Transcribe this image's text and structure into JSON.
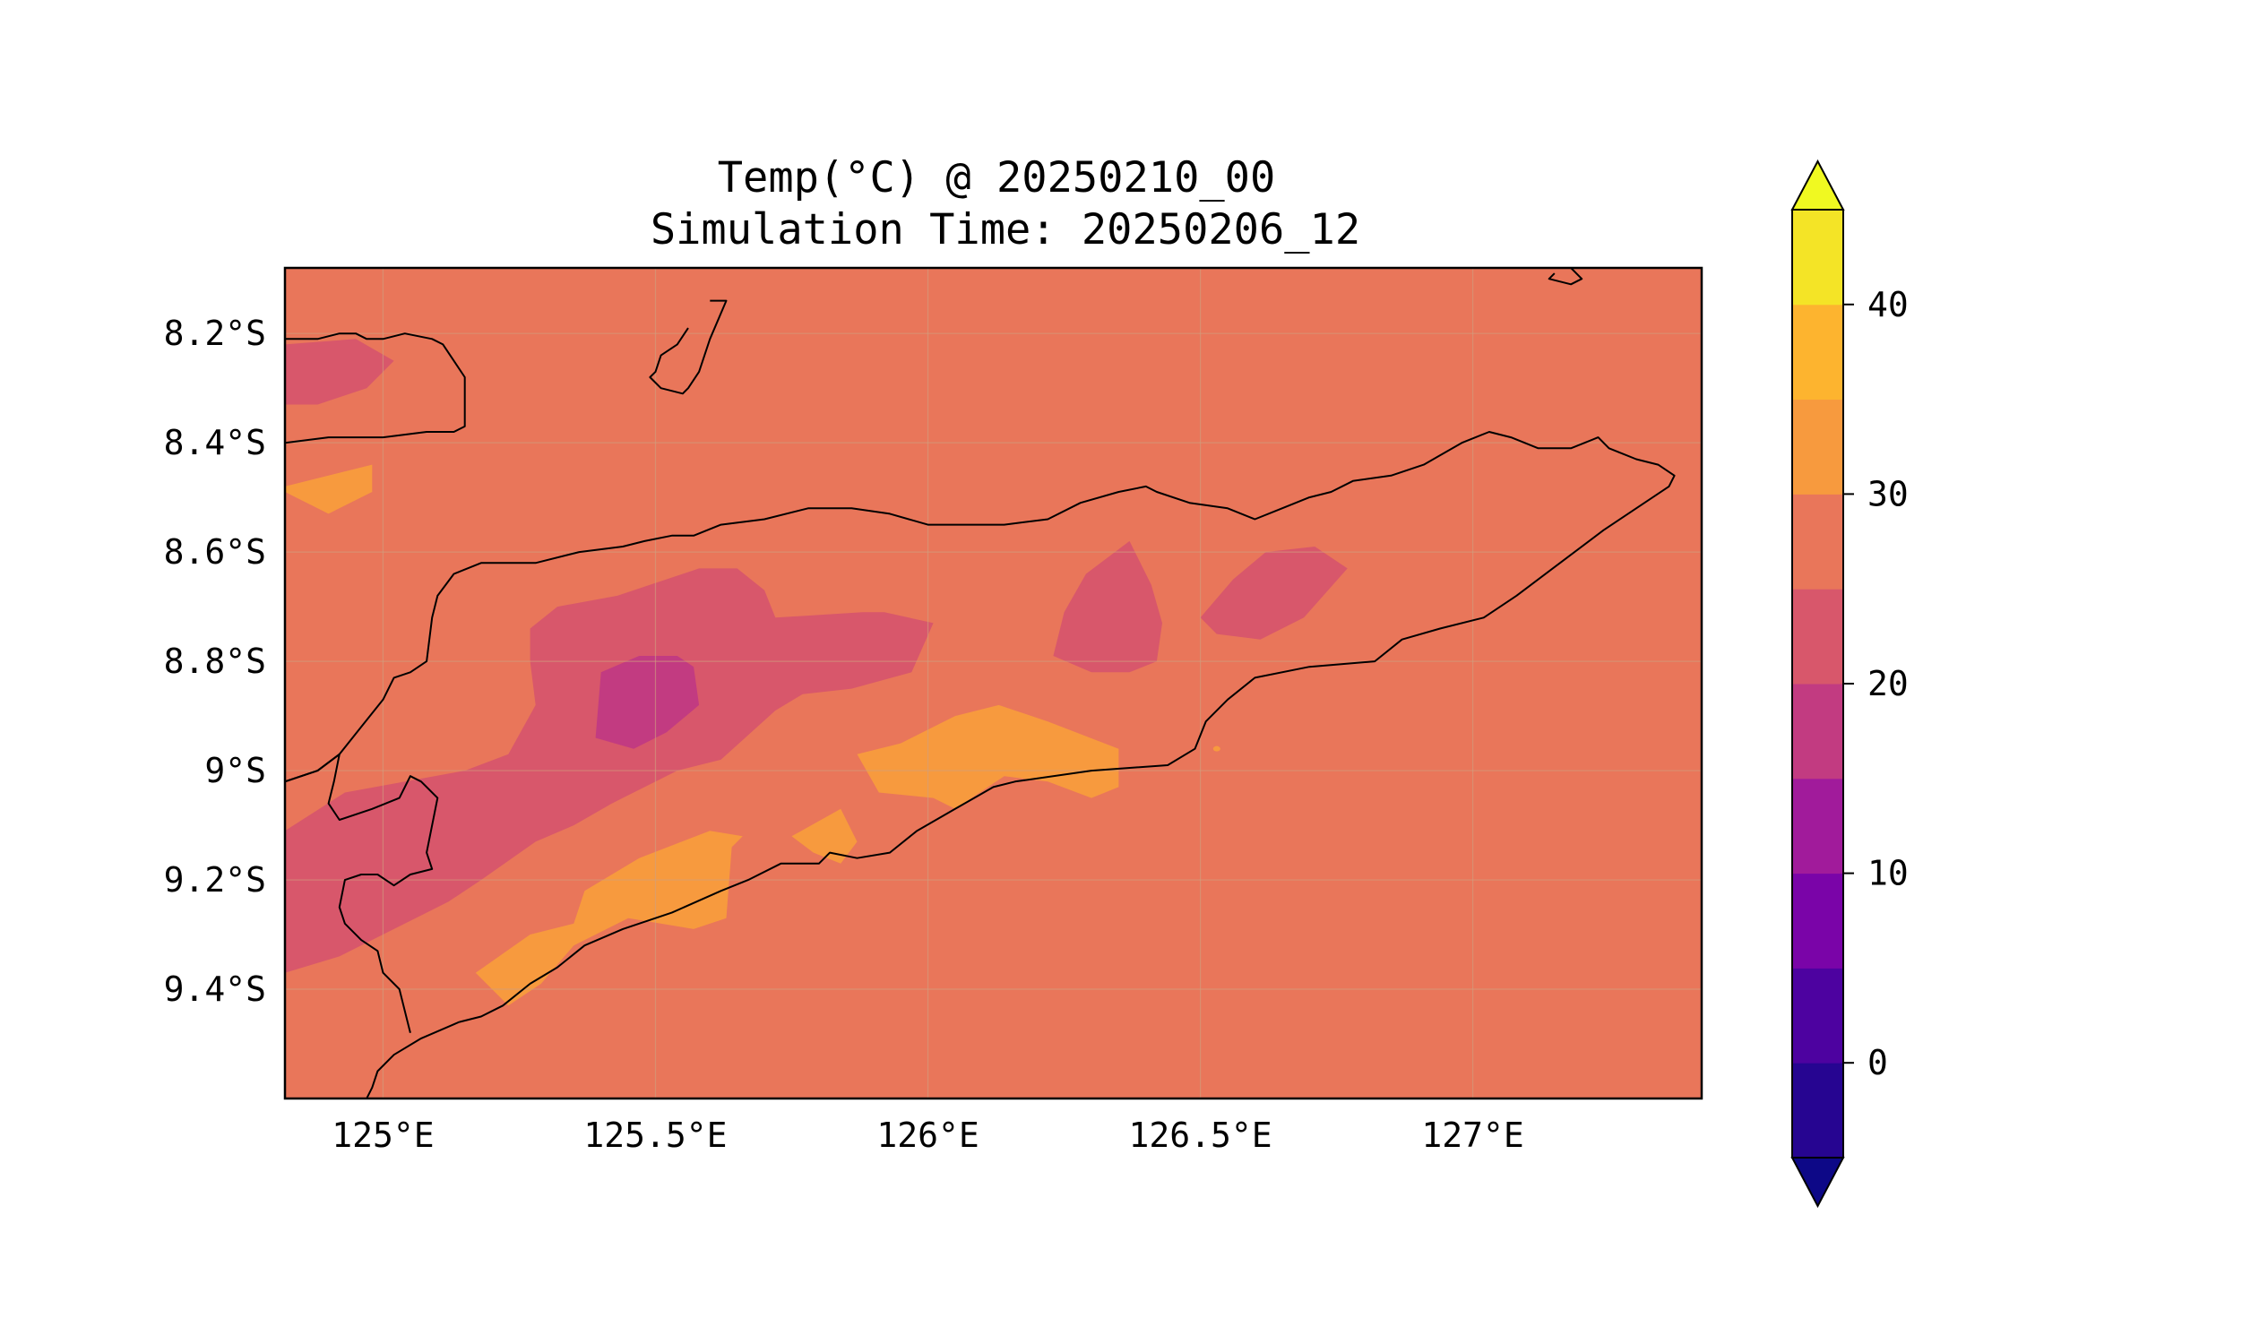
{
  "figure": {
    "title_line1": "Temp(°C) @ 20250210_00",
    "title_line2": "Simulation Time: 20250206_12"
  },
  "map": {
    "variable": "Temp(°C)",
    "background_fill": "#e9765a",
    "xlim": [
      124.82,
      127.42
    ],
    "ylim": [
      -9.6,
      -8.08
    ],
    "x_ticks": [
      {
        "value": 125.0,
        "label": "125°E"
      },
      {
        "value": 125.5,
        "label": "125.5°E"
      },
      {
        "value": 126.0,
        "label": "126°E"
      },
      {
        "value": 126.5,
        "label": "126.5°E"
      },
      {
        "value": 127.0,
        "label": "127°E"
      }
    ],
    "y_ticks": [
      {
        "value": -8.2,
        "label": "8.2°S"
      },
      {
        "value": -8.4,
        "label": "8.4°S"
      },
      {
        "value": -8.6,
        "label": "8.6°S"
      },
      {
        "value": -8.8,
        "label": "8.8°S"
      },
      {
        "value": -9.0,
        "label": "9°S"
      },
      {
        "value": -9.2,
        "label": "9.2°S"
      },
      {
        "value": -9.4,
        "label": "9.4°S"
      }
    ]
  },
  "colorbar": {
    "ticks": [
      {
        "value": 0,
        "label": "0"
      },
      {
        "value": 10,
        "label": "10"
      },
      {
        "value": 20,
        "label": "20"
      },
      {
        "value": 30,
        "label": "30"
      },
      {
        "value": 40,
        "label": "40"
      }
    ],
    "levels": [
      -5,
      0,
      5,
      10,
      15,
      20,
      25,
      30,
      35,
      40,
      45
    ],
    "colors": [
      "#260591",
      "#4d02a0",
      "#7a04a8",
      "#a11b9b",
      "#c23b81",
      "#d8576b",
      "#e9765a",
      "#f79a3e",
      "#fdb42f",
      "#f4e426"
    ],
    "under_color": "#0d0887",
    "over_color": "#f0f921",
    "extend": "both"
  },
  "contour_fills": [
    {
      "name": "contour-20-25-nw",
      "color": "#d8576b",
      "points": [
        [
          124.82,
          -8.22
        ],
        [
          124.95,
          -8.21
        ],
        [
          125.02,
          -8.25
        ],
        [
          124.97,
          -8.3
        ],
        [
          124.88,
          -8.33
        ],
        [
          124.82,
          -8.33
        ]
      ]
    },
    {
      "name": "contour-30-35-west",
      "color": "#f79a3e",
      "points": [
        [
          124.82,
          -8.48
        ],
        [
          124.98,
          -8.44
        ],
        [
          124.98,
          -8.49
        ],
        [
          124.9,
          -8.53
        ],
        [
          124.82,
          -8.49
        ]
      ]
    },
    {
      "name": "contour-20-25-central",
      "color": "#d8576b",
      "points": [
        [
          124.82,
          -9.11
        ],
        [
          124.93,
          -9.04
        ],
        [
          125.15,
          -9.0
        ],
        [
          125.23,
          -8.97
        ],
        [
          125.28,
          -8.88
        ],
        [
          125.27,
          -8.8
        ],
        [
          125.27,
          -8.74
        ],
        [
          125.32,
          -8.7
        ],
        [
          125.43,
          -8.68
        ],
        [
          125.58,
          -8.63
        ],
        [
          125.65,
          -8.63
        ],
        [
          125.7,
          -8.67
        ],
        [
          125.72,
          -8.72
        ],
        [
          125.88,
          -8.71
        ],
        [
          125.92,
          -8.71
        ],
        [
          126.01,
          -8.73
        ],
        [
          125.97,
          -8.82
        ],
        [
          125.86,
          -8.85
        ],
        [
          125.77,
          -8.86
        ],
        [
          125.72,
          -8.89
        ],
        [
          125.62,
          -8.98
        ],
        [
          125.54,
          -9.0
        ],
        [
          125.42,
          -9.06
        ],
        [
          125.35,
          -9.1
        ],
        [
          125.28,
          -9.13
        ],
        [
          125.18,
          -9.2
        ],
        [
          125.12,
          -9.24
        ],
        [
          125.02,
          -9.29
        ],
        [
          124.92,
          -9.34
        ],
        [
          124.82,
          -9.37
        ]
      ]
    },
    {
      "name": "contour-15-20-central",
      "color": "#c23b81",
      "points": [
        [
          125.4,
          -8.82
        ],
        [
          125.47,
          -8.79
        ],
        [
          125.54,
          -8.79
        ],
        [
          125.57,
          -8.81
        ],
        [
          125.58,
          -8.88
        ],
        [
          125.52,
          -8.93
        ],
        [
          125.46,
          -8.96
        ],
        [
          125.39,
          -8.94
        ]
      ]
    },
    {
      "name": "contour-20-25-east-a",
      "color": "#d8576b",
      "points": [
        [
          126.29,
          -8.64
        ],
        [
          126.37,
          -8.58
        ],
        [
          126.41,
          -8.66
        ],
        [
          126.43,
          -8.73
        ],
        [
          126.42,
          -8.8
        ],
        [
          126.37,
          -8.82
        ],
        [
          126.3,
          -8.82
        ],
        [
          126.23,
          -8.79
        ],
        [
          126.25,
          -8.71
        ]
      ]
    },
    {
      "name": "contour-20-25-east-b",
      "color": "#d8576b",
      "points": [
        [
          126.56,
          -8.65
        ],
        [
          126.62,
          -8.6
        ],
        [
          126.71,
          -8.59
        ],
        [
          126.77,
          -8.63
        ],
        [
          126.69,
          -8.72
        ],
        [
          126.61,
          -8.76
        ],
        [
          126.53,
          -8.75
        ],
        [
          126.5,
          -8.72
        ]
      ]
    },
    {
      "name": "contour-30-35-south-a",
      "color": "#f79a3e",
      "points": [
        [
          125.17,
          -9.37
        ],
        [
          125.27,
          -9.3
        ],
        [
          125.35,
          -9.28
        ],
        [
          125.37,
          -9.22
        ],
        [
          125.47,
          -9.16
        ],
        [
          125.6,
          -9.11
        ],
        [
          125.66,
          -9.12
        ],
        [
          125.64,
          -9.14
        ],
        [
          125.63,
          -9.27
        ],
        [
          125.57,
          -9.29
        ],
        [
          125.45,
          -9.27
        ],
        [
          125.35,
          -9.32
        ],
        [
          125.29,
          -9.39
        ],
        [
          125.23,
          -9.43
        ]
      ]
    },
    {
      "name": "contour-30-35-south-b",
      "color": "#f79a3e",
      "points": [
        [
          125.75,
          -9.12
        ],
        [
          125.84,
          -9.07
        ],
        [
          125.87,
          -9.13
        ],
        [
          125.84,
          -9.17
        ],
        [
          125.79,
          -9.15
        ]
      ]
    },
    {
      "name": "contour-30-35-south-c",
      "color": "#f79a3e",
      "points": [
        [
          125.87,
          -8.97
        ],
        [
          125.95,
          -8.95
        ],
        [
          126.05,
          -8.9
        ],
        [
          126.13,
          -8.88
        ],
        [
          126.22,
          -8.91
        ],
        [
          126.35,
          -8.96
        ],
        [
          126.35,
          -9.03
        ],
        [
          126.3,
          -9.05
        ],
        [
          126.22,
          -9.02
        ],
        [
          126.14,
          -9.01
        ],
        [
          126.05,
          -9.07
        ],
        [
          126.01,
          -9.05
        ],
        [
          125.91,
          -9.04
        ]
      ]
    }
  ],
  "coastlines": [
    {
      "name": "coastline-main-north",
      "points": [
        [
          124.82,
          -9.02
        ],
        [
          124.88,
          -9.0
        ],
        [
          124.92,
          -8.97
        ],
        [
          124.96,
          -8.92
        ],
        [
          125.0,
          -8.87
        ],
        [
          125.02,
          -8.83
        ],
        [
          125.05,
          -8.82
        ],
        [
          125.08,
          -8.8
        ],
        [
          125.09,
          -8.72
        ],
        [
          125.1,
          -8.68
        ],
        [
          125.13,
          -8.64
        ],
        [
          125.18,
          -8.62
        ],
        [
          125.22,
          -8.62
        ],
        [
          125.28,
          -8.62
        ],
        [
          125.36,
          -8.6
        ],
        [
          125.44,
          -8.59
        ],
        [
          125.48,
          -8.58
        ],
        [
          125.53,
          -8.57
        ],
        [
          125.57,
          -8.57
        ],
        [
          125.62,
          -8.55
        ],
        [
          125.7,
          -8.54
        ],
        [
          125.78,
          -8.52
        ],
        [
          125.86,
          -8.52
        ],
        [
          125.93,
          -8.53
        ],
        [
          126.0,
          -8.55
        ],
        [
          126.08,
          -8.55
        ],
        [
          126.14,
          -8.55
        ],
        [
          126.22,
          -8.54
        ],
        [
          126.28,
          -8.51
        ],
        [
          126.35,
          -8.49
        ],
        [
          126.4,
          -8.48
        ],
        [
          126.42,
          -8.49
        ],
        [
          126.48,
          -8.51
        ],
        [
          126.55,
          -8.52
        ],
        [
          126.6,
          -8.54
        ],
        [
          126.65,
          -8.52
        ],
        [
          126.7,
          -8.5
        ],
        [
          126.74,
          -8.49
        ],
        [
          126.78,
          -8.47
        ],
        [
          126.85,
          -8.46
        ],
        [
          126.91,
          -8.44
        ],
        [
          126.98,
          -8.4
        ],
        [
          127.03,
          -8.38
        ],
        [
          127.07,
          -8.39
        ],
        [
          127.12,
          -8.41
        ],
        [
          127.18,
          -8.41
        ],
        [
          127.23,
          -8.39
        ],
        [
          127.25,
          -8.41
        ],
        [
          127.3,
          -8.43
        ],
        [
          127.34,
          -8.44
        ],
        [
          127.37,
          -8.46
        ],
        [
          127.36,
          -8.48
        ],
        [
          127.3,
          -8.52
        ],
        [
          127.24,
          -8.56
        ],
        [
          127.16,
          -8.62
        ],
        [
          127.08,
          -8.68
        ],
        [
          127.02,
          -8.72
        ],
        [
          126.94,
          -8.74
        ],
        [
          126.87,
          -8.76
        ],
        [
          126.82,
          -8.8
        ],
        [
          126.7,
          -8.81
        ],
        [
          126.6,
          -8.83
        ],
        [
          126.55,
          -8.87
        ],
        [
          126.51,
          -8.91
        ],
        [
          126.49,
          -8.96
        ],
        [
          126.44,
          -8.99
        ],
        [
          126.3,
          -9.0
        ],
        [
          126.16,
          -9.02
        ],
        [
          126.12,
          -9.03
        ],
        [
          126.05,
          -9.07
        ],
        [
          125.98,
          -9.11
        ],
        [
          125.93,
          -9.15
        ],
        [
          125.87,
          -9.16
        ],
        [
          125.82,
          -9.15
        ],
        [
          125.8,
          -9.17
        ],
        [
          125.73,
          -9.17
        ],
        [
          125.67,
          -9.2
        ],
        [
          125.62,
          -9.22
        ],
        [
          125.53,
          -9.26
        ],
        [
          125.44,
          -9.29
        ],
        [
          125.37,
          -9.32
        ],
        [
          125.32,
          -9.36
        ],
        [
          125.27,
          -9.39
        ],
        [
          125.22,
          -9.43
        ],
        [
          125.18,
          -9.45
        ],
        [
          125.14,
          -9.46
        ]
      ]
    },
    {
      "name": "coastline-west-border",
      "points": [
        [
          125.14,
          -9.46
        ],
        [
          125.07,
          -9.49
        ],
        [
          125.02,
          -9.52
        ],
        [
          124.99,
          -9.55
        ],
        [
          124.98,
          -9.58
        ],
        [
          124.97,
          -9.6
        ]
      ]
    },
    {
      "name": "coastline-oecusse",
      "points": [
        [
          124.82,
          -9.02
        ],
        [
          124.88,
          -9.0
        ],
        [
          124.92,
          -8.97
        ],
        [
          124.91,
          -9.02
        ],
        [
          124.9,
          -9.06
        ],
        [
          124.92,
          -9.09
        ],
        [
          124.98,
          -9.07
        ],
        [
          125.03,
          -9.05
        ],
        [
          125.05,
          -9.01
        ],
        [
          125.07,
          -9.02
        ],
        [
          125.1,
          -9.05
        ],
        [
          125.08,
          -9.15
        ],
        [
          125.09,
          -9.18
        ],
        [
          125.05,
          -9.19
        ],
        [
          125.02,
          -9.21
        ],
        [
          124.99,
          -9.19
        ],
        [
          124.96,
          -9.19
        ],
        [
          124.93,
          -9.2
        ],
        [
          124.92,
          -9.25
        ],
        [
          124.93,
          -9.28
        ],
        [
          124.96,
          -9.31
        ],
        [
          124.99,
          -9.33
        ],
        [
          125.0,
          -9.37
        ],
        [
          125.03,
          -9.4
        ],
        [
          125.05,
          -9.48
        ]
      ]
    },
    {
      "name": "coastline-alor-south",
      "points": [
        [
          124.82,
          -8.21
        ],
        [
          124.88,
          -8.21
        ],
        [
          124.92,
          -8.2
        ],
        [
          124.95,
          -8.2
        ],
        [
          124.97,
          -8.21
        ],
        [
          125.0,
          -8.21
        ],
        [
          125.04,
          -8.2
        ],
        [
          125.09,
          -8.21
        ],
        [
          125.11,
          -8.22
        ],
        [
          125.13,
          -8.25
        ],
        [
          125.15,
          -8.28
        ],
        [
          125.15,
          -8.35
        ],
        [
          125.15,
          -8.37
        ],
        [
          125.13,
          -8.38
        ],
        [
          125.08,
          -8.38
        ],
        [
          125.0,
          -8.39
        ],
        [
          124.9,
          -8.39
        ],
        [
          124.82,
          -8.4
        ]
      ]
    },
    {
      "name": "coastline-atauro",
      "points": [
        [
          125.6,
          -8.14
        ],
        [
          125.63,
          -8.14
        ],
        [
          125.6,
          -8.21
        ],
        [
          125.58,
          -8.27
        ],
        [
          125.56,
          -8.3
        ],
        [
          125.55,
          -8.31
        ],
        [
          125.51,
          -8.3
        ],
        [
          125.49,
          -8.28
        ],
        [
          125.5,
          -8.27
        ],
        [
          125.51,
          -8.24
        ],
        [
          125.54,
          -8.22
        ],
        [
          125.56,
          -8.19
        ]
      ]
    },
    {
      "name": "coastline-wetar",
      "points": [
        [
          127.16,
          -8.08
        ],
        [
          127.18,
          -8.08
        ],
        [
          127.2,
          -8.1
        ],
        [
          127.18,
          -8.11
        ],
        [
          127.14,
          -8.1
        ],
        [
          127.15,
          -8.09
        ]
      ]
    }
  ],
  "extra_marks": [
    {
      "name": "contour-30-35-dot",
      "color": "#f79a3e",
      "lon": 126.53,
      "lat": -8.96
    }
  ]
}
